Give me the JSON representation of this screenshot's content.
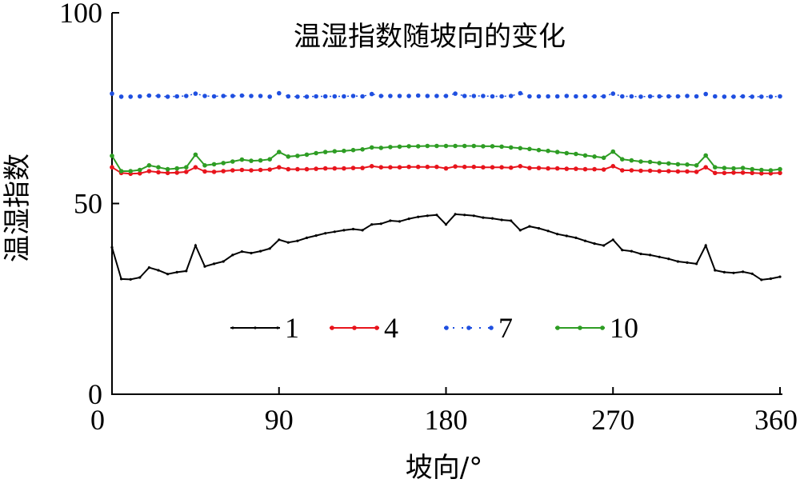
{
  "chart_data": {
    "type": "line",
    "title": "温湿指数随坡向的变化",
    "xlabel": "坡向/°",
    "ylabel": "温湿指数",
    "xlim": [
      0,
      360
    ],
    "ylim": [
      0,
      100
    ],
    "xticks": [
      0,
      90,
      180,
      270,
      360
    ],
    "yticks": [
      0,
      50,
      100
    ],
    "xtick_labels": [
      "0",
      "90",
      "180",
      "270",
      "360"
    ],
    "ytick_labels": [
      "0",
      "50",
      "100"
    ],
    "grid": false,
    "legend_position": "bottom-center, inside plot, single row",
    "x": [
      0,
      5,
      10,
      15,
      20,
      25,
      30,
      35,
      40,
      45,
      50,
      55,
      60,
      65,
      70,
      75,
      80,
      85,
      90,
      95,
      100,
      105,
      110,
      115,
      120,
      125,
      130,
      135,
      140,
      145,
      150,
      155,
      160,
      165,
      170,
      175,
      180,
      185,
      190,
      195,
      200,
      205,
      210,
      215,
      220,
      225,
      230,
      235,
      240,
      245,
      250,
      255,
      260,
      265,
      270,
      275,
      280,
      285,
      290,
      295,
      300,
      305,
      310,
      315,
      320,
      325,
      330,
      335,
      340,
      345,
      350,
      355,
      360
    ],
    "series": [
      {
        "name": "1",
        "color": "#000000",
        "marker": "small-dot",
        "values": [
          38.5,
          30.2,
          30.1,
          30.6,
          33.2,
          32.5,
          31.5,
          32.0,
          32.3,
          39.0,
          33.5,
          34.2,
          34.8,
          36.5,
          37.4,
          37.0,
          37.5,
          38.2,
          40.5,
          39.8,
          40.2,
          41.0,
          41.6,
          42.2,
          42.6,
          43.0,
          43.3,
          43.0,
          44.5,
          44.7,
          45.5,
          45.3,
          46.0,
          46.5,
          46.8,
          47.0,
          44.5,
          47.2,
          47.0,
          46.8,
          46.3,
          46.1,
          45.7,
          45.5,
          43.0,
          44.0,
          43.5,
          42.8,
          42.0,
          41.5,
          41.0,
          40.2,
          39.5,
          39.0,
          40.5,
          37.8,
          37.5,
          36.8,
          36.5,
          36.0,
          35.5,
          34.8,
          34.5,
          34.2,
          39.0,
          32.5,
          32.0,
          31.8,
          32.1,
          31.6,
          30.0,
          30.3,
          30.8
        ]
      },
      {
        "name": "4",
        "color": "#e8141c",
        "marker": "dot",
        "values": [
          59.5,
          58.0,
          57.8,
          57.9,
          58.5,
          58.2,
          58.0,
          58.1,
          58.3,
          59.5,
          58.4,
          58.3,
          58.5,
          58.7,
          58.8,
          58.7,
          58.8,
          58.9,
          59.5,
          59.0,
          59.0,
          59.0,
          59.1,
          59.2,
          59.2,
          59.2,
          59.3,
          59.3,
          59.8,
          59.5,
          59.5,
          59.5,
          59.6,
          59.6,
          59.6,
          59.6,
          59.2,
          59.7,
          59.6,
          59.6,
          59.5,
          59.5,
          59.5,
          59.4,
          59.8,
          59.3,
          59.3,
          59.2,
          59.2,
          59.1,
          59.1,
          59.0,
          59.0,
          58.9,
          59.8,
          58.7,
          58.7,
          58.6,
          58.6,
          58.5,
          58.5,
          58.4,
          58.4,
          58.3,
          59.5,
          58.0,
          58.0,
          58.1,
          58.1,
          58.0,
          57.9,
          57.9,
          58.0
        ]
      },
      {
        "name": "7",
        "color": "#1f4fe0",
        "marker": "dot",
        "values": [
          78.8,
          78.0,
          78.0,
          78.1,
          78.3,
          78.2,
          78.0,
          78.1,
          78.2,
          78.8,
          78.2,
          78.1,
          78.2,
          78.2,
          78.3,
          78.2,
          78.2,
          78.0,
          78.9,
          78.1,
          78.0,
          78.0,
          78.1,
          78.1,
          78.1,
          78.1,
          78.2,
          78.1,
          78.7,
          78.2,
          78.2,
          78.2,
          78.2,
          78.3,
          78.2,
          78.2,
          78.2,
          78.8,
          78.2,
          78.2,
          78.2,
          78.1,
          78.1,
          78.2,
          78.9,
          78.1,
          78.1,
          78.1,
          78.1,
          78.2,
          78.1,
          78.1,
          78.1,
          78.1,
          78.8,
          78.1,
          78.1,
          78.0,
          78.1,
          78.1,
          78.1,
          78.1,
          78.2,
          78.1,
          78.7,
          78.1,
          78.0,
          78.0,
          78.1,
          78.0,
          78.0,
          78.0,
          78.1
        ]
      },
      {
        "name": "10",
        "color": "#2e9d24",
        "marker": "dot",
        "values": [
          62.5,
          58.5,
          58.5,
          58.8,
          60.0,
          59.5,
          59.0,
          59.2,
          59.5,
          62.8,
          60.0,
          60.3,
          60.6,
          61.0,
          61.5,
          61.2,
          61.3,
          61.6,
          63.5,
          62.3,
          62.5,
          62.8,
          63.2,
          63.5,
          63.7,
          63.8,
          64.0,
          64.2,
          64.7,
          64.6,
          64.8,
          64.9,
          65.0,
          65.0,
          65.1,
          65.1,
          65.1,
          65.1,
          65.1,
          65.1,
          65.0,
          65.0,
          64.9,
          64.7,
          64.5,
          64.3,
          64.0,
          63.8,
          63.5,
          63.2,
          63.0,
          62.6,
          62.3,
          62.0,
          63.6,
          61.6,
          61.3,
          61.0,
          60.9,
          60.6,
          60.5,
          60.3,
          60.2,
          60.0,
          62.6,
          59.5,
          59.3,
          59.2,
          59.3,
          59.0,
          58.8,
          58.7,
          59.0
        ]
      }
    ]
  }
}
